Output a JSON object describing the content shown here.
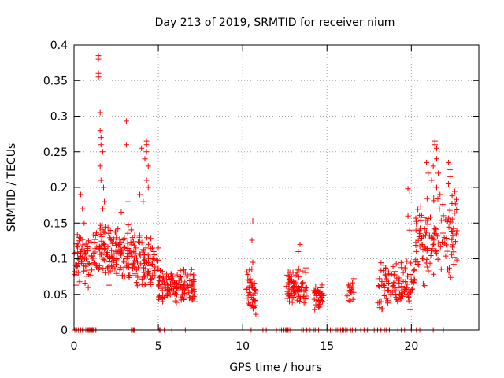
{
  "chart_data": {
    "type": "scatter",
    "title": "Day 213 of 2019, SRMTID for receiver nium",
    "xlabel": "GPS time / hours",
    "ylabel": "SRMTID / TECUs",
    "xlim": [
      0,
      24
    ],
    "ylim": [
      0,
      0.4
    ],
    "xticks": [
      0,
      5,
      10,
      15,
      20
    ],
    "yticks": [
      0,
      0.05,
      0.1,
      0.15,
      0.2,
      0.25,
      0.3,
      0.35,
      0.4
    ],
    "xtick_labels": [
      "0",
      "5",
      "10",
      "15",
      "20"
    ],
    "ytick_labels": [
      "0",
      "0.05",
      "0.1",
      "0.15",
      "0.2",
      "0.25",
      "0.3",
      "0.35",
      "0.4"
    ],
    "grid": true,
    "marker": "+",
    "color": "#ff0000",
    "series": [
      {
        "name": "SRMTID",
        "clusters": [
          {
            "x_range": [
              0.0,
              1.2
            ],
            "y_range": [
              0.055,
              0.14
            ],
            "count": 70
          },
          {
            "x_range": [
              1.2,
              2.2
            ],
            "y_range": [
              0.06,
              0.16
            ],
            "count": 60
          },
          {
            "x_range": [
              2.2,
              3.6
            ],
            "y_range": [
              0.06,
              0.15
            ],
            "count": 90
          },
          {
            "x_range": [
              3.6,
              5.0
            ],
            "y_range": [
              0.05,
              0.14
            ],
            "count": 80
          },
          {
            "x_range": [
              5.0,
              7.2
            ],
            "y_range": [
              0.035,
              0.09
            ],
            "count": 140
          },
          {
            "x_range": [
              10.2,
              10.8
            ],
            "y_range": [
              0.02,
              0.095
            ],
            "count": 40
          },
          {
            "x_range": [
              12.6,
              13.8
            ],
            "y_range": [
              0.03,
              0.09
            ],
            "count": 80
          },
          {
            "x_range": [
              14.2,
              14.8
            ],
            "y_range": [
              0.02,
              0.07
            ],
            "count": 40
          },
          {
            "x_range": [
              16.2,
              16.6
            ],
            "y_range": [
              0.035,
              0.075
            ],
            "count": 18
          },
          {
            "x_range": [
              18.0,
              20.2
            ],
            "y_range": [
              0.02,
              0.1
            ],
            "count": 110
          },
          {
            "x_range": [
              20.2,
              22.7
            ],
            "y_range": [
              0.06,
              0.2
            ],
            "count": 130
          }
        ],
        "points": [
          [
            0.2,
            0.09
          ],
          [
            0.4,
            0.19
          ],
          [
            0.5,
            0.17
          ],
          [
            0.6,
            0.15
          ],
          [
            0.3,
            0.13
          ],
          [
            1.45,
            0.385
          ],
          [
            1.45,
            0.38
          ],
          [
            1.45,
            0.36
          ],
          [
            1.45,
            0.355
          ],
          [
            1.55,
            0.305
          ],
          [
            1.55,
            0.28
          ],
          [
            1.6,
            0.27
          ],
          [
            1.6,
            0.26
          ],
          [
            1.7,
            0.25
          ],
          [
            1.55,
            0.23
          ],
          [
            1.6,
            0.21
          ],
          [
            1.75,
            0.2
          ],
          [
            1.8,
            0.18
          ],
          [
            1.7,
            0.17
          ],
          [
            3.1,
            0.293
          ],
          [
            3.1,
            0.26
          ],
          [
            3.2,
            0.18
          ],
          [
            2.8,
            0.165
          ],
          [
            4.0,
            0.255
          ],
          [
            4.3,
            0.265
          ],
          [
            4.3,
            0.26
          ],
          [
            4.3,
            0.25
          ],
          [
            4.2,
            0.24
          ],
          [
            4.4,
            0.23
          ],
          [
            4.3,
            0.21
          ],
          [
            4.4,
            0.2
          ],
          [
            3.9,
            0.19
          ],
          [
            4.1,
            0.18
          ],
          [
            10.6,
            0.153
          ],
          [
            10.55,
            0.126
          ],
          [
            10.6,
            0.095
          ],
          [
            13.4,
            0.12
          ],
          [
            13.3,
            0.11
          ],
          [
            19.8,
            0.198
          ],
          [
            19.9,
            0.195
          ],
          [
            19.8,
            0.16
          ],
          [
            19.9,
            0.14
          ],
          [
            21.4,
            0.265
          ],
          [
            21.4,
            0.26
          ],
          [
            21.5,
            0.255
          ],
          [
            21.5,
            0.24
          ],
          [
            21.3,
            0.23
          ],
          [
            21.6,
            0.22
          ],
          [
            21.2,
            0.21
          ],
          [
            21.5,
            0.2
          ],
          [
            21.7,
            0.19
          ],
          [
            22.2,
            0.235
          ],
          [
            22.3,
            0.225
          ],
          [
            22.3,
            0.215
          ],
          [
            22.2,
            0.205
          ],
          [
            20.9,
            0.235
          ],
          [
            21.0,
            0.22
          ]
        ],
        "zero_points": [
          0.05,
          0.15,
          0.25,
          0.4,
          0.5,
          0.55,
          0.7,
          0.8,
          0.85,
          0.9,
          0.95,
          1.0,
          1.05,
          1.1,
          1.15,
          1.25,
          1.3,
          3.4,
          3.5,
          3.55,
          3.6,
          5.05,
          5.1,
          5.35,
          5.8,
          6.6,
          10.5,
          11.2,
          11.4,
          12.0,
          12.2,
          12.3,
          12.4,
          12.45,
          12.55,
          12.6,
          12.65,
          12.7,
          12.8,
          13.5,
          13.6,
          13.8,
          14.0,
          14.2,
          14.3,
          14.5,
          15.0,
          15.2,
          15.3,
          15.5,
          15.6,
          15.7,
          15.8,
          15.9,
          16.0,
          16.1,
          16.2,
          16.4,
          16.5,
          16.7,
          17.0,
          17.2,
          17.4,
          17.8,
          18.0,
          18.2,
          18.4,
          18.5,
          18.7,
          19.2,
          19.4,
          19.6,
          20.0,
          20.1,
          20.3,
          20.5,
          21.3,
          21.9
        ]
      }
    ]
  }
}
